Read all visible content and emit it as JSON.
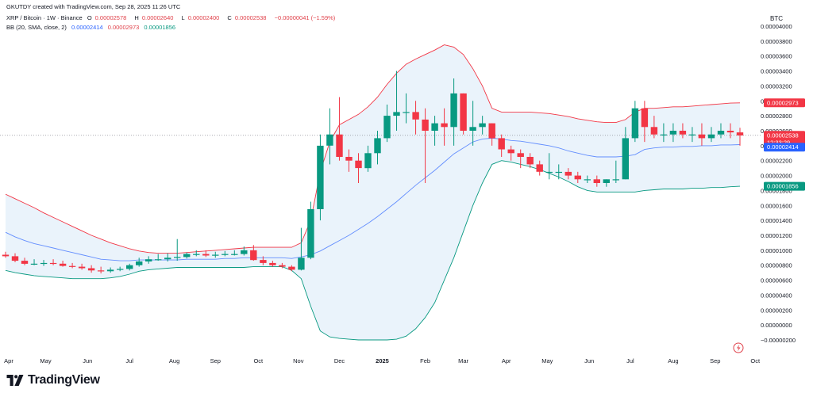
{
  "header": {
    "credit": "GKUTDY created with TradingView.com, Sep 28, 2025 11:26 UTC",
    "symbol": "XRP / Bitcoin · 1W · Binance",
    "ohlc": {
      "open_label": "O",
      "open": "0.00002578",
      "high_label": "H",
      "high": "0.00002640",
      "low_label": "L",
      "low": "0.00002400",
      "close_label": "C",
      "close": "0.00002538",
      "change": "−0.00000041 (−1.59%)"
    },
    "indicator": {
      "name": "BB (20, SMA, close, 2)",
      "basis": "0.00002414",
      "upper": "0.00002973",
      "lower": "0.00001856"
    }
  },
  "price_scale": {
    "currency": "BTC",
    "ticks": [
      "0.00004000",
      "0.00003800",
      "0.00003600",
      "0.00003400",
      "0.00003200",
      "0.00003000",
      "0.00002800",
      "0.00002600",
      "0.00002400",
      "0.00002200",
      "0.00002000",
      "0.00001800",
      "0.00001600",
      "0.00001400",
      "0.00001200",
      "0.00001000",
      "0.00000800",
      "0.00000600",
      "0.00000400",
      "0.00000200",
      "0.00000000",
      "−0.00000200"
    ]
  },
  "time_scale": {
    "labels": [
      "Apr",
      "May",
      "Jun",
      "Jul",
      "Aug",
      "Sep",
      "Oct",
      "Nov",
      "Dec",
      "2025",
      "Feb",
      "Mar",
      "Apr",
      "May",
      "Jun",
      "Jul",
      "Aug",
      "Sep",
      "Oct"
    ]
  },
  "price_tags": {
    "upper": "0.00002973",
    "last": "0.00002538",
    "countdown": "12:33:29",
    "basis": "0.00002414",
    "lower": "0.00001856"
  },
  "colors": {
    "up": "#089981",
    "down": "#f23645",
    "basis": "#2962ff",
    "upper": "#f23645",
    "lower": "#089981",
    "band_fill": "#e3effa"
  },
  "logo": {
    "text": "TradingView",
    "icon": "tradingview-logo-icon"
  },
  "chart_data": {
    "type": "candlestick",
    "x": [
      "2024-04-01",
      "2024-04-08",
      "2024-04-15",
      "2024-04-22",
      "2024-04-29",
      "2024-05-06",
      "2024-05-13",
      "2024-05-20",
      "2024-05-27",
      "2024-06-03",
      "2024-06-10",
      "2024-06-17",
      "2024-06-24",
      "2024-07-01",
      "2024-07-08",
      "2024-07-15",
      "2024-07-22",
      "2024-07-29",
      "2024-08-05",
      "2024-08-12",
      "2024-08-19",
      "2024-08-26",
      "2024-09-02",
      "2024-09-09",
      "2024-09-16",
      "2024-09-23",
      "2024-09-30",
      "2024-10-07",
      "2024-10-14",
      "2024-10-21",
      "2024-10-28",
      "2024-11-04",
      "2024-11-11",
      "2024-11-18",
      "2024-11-25",
      "2024-12-02",
      "2024-12-09",
      "2024-12-16",
      "2024-12-23",
      "2024-12-30",
      "2025-01-06",
      "2025-01-13",
      "2025-01-20",
      "2025-01-27",
      "2025-02-03",
      "2025-02-10",
      "2025-02-17",
      "2025-02-24",
      "2025-03-03",
      "2025-03-10",
      "2025-03-17",
      "2025-03-24",
      "2025-03-31",
      "2025-04-07",
      "2025-04-14",
      "2025-04-21",
      "2025-04-28",
      "2025-05-05",
      "2025-05-12",
      "2025-05-19",
      "2025-05-26",
      "2025-06-02",
      "2025-06-09",
      "2025-06-16",
      "2025-06-23",
      "2025-06-30",
      "2025-07-07",
      "2025-07-14",
      "2025-07-21",
      "2025-07-28",
      "2025-08-04",
      "2025-08-11",
      "2025-08-18",
      "2025-08-25",
      "2025-09-01",
      "2025-09-08",
      "2025-09-15",
      "2025-09-22"
    ],
    "open": [
      9.4e-06,
      9.2e-06,
      8.6e-06,
      8.2e-06,
      8.2e-06,
      8.3e-06,
      8.2e-06,
      7.9e-06,
      7.8e-06,
      7.6e-06,
      7.3e-06,
      7.2e-06,
      7.4e-06,
      7.5e-06,
      8e-06,
      8.5e-06,
      8.8e-06,
      8.8e-06,
      9e-06,
      9.1e-06,
      9.5e-06,
      9.5e-06,
      9.3e-06,
      9.4e-06,
      9.5e-06,
      9.5e-06,
      1e-05,
      8.7e-06,
      8.3e-06,
      8e-06,
      7.8e-06,
      7.4e-06,
      9e-06,
      1.55e-05,
      2.4e-05,
      2.55e-05,
      2.25e-05,
      2.2e-05,
      2.1e-05,
      2.3e-05,
      2.5e-05,
      2.8e-05,
      2.85e-05,
      2.85e-05,
      2.75e-05,
      2.6e-05,
      2.7e-05,
      2.65e-05,
      3.1e-05,
      2.6e-05,
      2.65e-05,
      2.7e-05,
      2.5e-05,
      2.35e-05,
      2.3e-05,
      2.25e-05,
      2.15e-05,
      2.05e-05,
      2.05e-05,
      2.05e-05,
      2e-05,
      1.95e-05,
      1.95e-05,
      1.9e-05,
      1.95e-05,
      1.95e-05,
      2.5e-05,
      2.9e-05,
      2.65e-05,
      2.55e-05,
      2.55e-05,
      2.6e-05,
      2.55e-05,
      2.55e-05,
      2.5e-05,
      2.55e-05,
      2.6e-05,
      2.578e-05
    ],
    "high": [
      9.8e-06,
      9.6e-06,
      9e-06,
      8.8e-06,
      8.7e-06,
      8.8e-06,
      8.6e-06,
      8.3e-06,
      8.2e-06,
      8e-06,
      7.8e-06,
      7.7e-06,
      7.8e-06,
      8.2e-06,
      9e-06,
      9.2e-06,
      9.5e-06,
      9.6e-06,
      1.15e-05,
      9.7e-06,
      1e-05,
      1e-05,
      9.8e-06,
      9.9e-06,
      1e-05,
      1.05e-05,
      1.07e-05,
      9.2e-06,
      8.6e-06,
      8.3e-06,
      8e-06,
      1.3e-05,
      1.65e-05,
      2.55e-05,
      2.9e-05,
      3.05e-05,
      2.35e-05,
      2.3e-05,
      2.4e-05,
      2.6e-05,
      2.95e-05,
      3.4e-05,
      3.1e-05,
      3e-05,
      2.9e-05,
      2.8e-05,
      2.9e-05,
      3.3e-05,
      3.1e-05,
      3e-05,
      2.8e-05,
      2.7e-05,
      2.55e-05,
      2.4e-05,
      2.35e-05,
      2.3e-05,
      2.2e-05,
      2.3e-05,
      2.15e-05,
      2.1e-05,
      2.05e-05,
      2e-05,
      2e-05,
      1.95e-05,
      2.2e-05,
      2.65e-05,
      3e-05,
      3e-05,
      2.8e-05,
      2.7e-05,
      2.7e-05,
      2.7e-05,
      2.65e-05,
      2.7e-05,
      2.65e-05,
      2.7e-05,
      2.7e-05,
      2.64e-05
    ],
    "low": [
      9e-06,
      8.4e-06,
      8e-06,
      8e-06,
      7.9e-06,
      8e-06,
      7.8e-06,
      7.6e-06,
      7.4e-06,
      7e-06,
      6.9e-06,
      7e-06,
      7.2e-06,
      7.3e-06,
      7.8e-06,
      8.2e-06,
      8.6e-06,
      8.5e-06,
      8.6e-06,
      8.9e-06,
      9.2e-06,
      9.1e-06,
      9e-06,
      9.2e-06,
      9.3e-06,
      9.3e-06,
      8.6e-06,
      8e-06,
      7.8e-06,
      7.6e-06,
      7.2e-06,
      7.3e-06,
      8.8e-06,
      1.4e-05,
      2.15e-05,
      2.2e-05,
      2.05e-05,
      1.9e-05,
      2.05e-05,
      2.15e-05,
      2.45e-05,
      2.6e-05,
      2.7e-05,
      2.55e-05,
      1.9e-05,
      2.4e-05,
      2.4e-05,
      2.4e-05,
      2.55e-05,
      2.4e-05,
      2.55e-05,
      2.4e-05,
      2.25e-05,
      2.2e-05,
      2.1e-05,
      2.1e-05,
      2e-05,
      1.95e-05,
      1.95e-05,
      1.95e-05,
      1.9e-05,
      1.9e-05,
      1.85e-05,
      1.85e-05,
      1.9e-05,
      1.95e-05,
      2.45e-05,
      2.45e-05,
      2.5e-05,
      2.45e-05,
      2.45e-05,
      2.5e-05,
      2.45e-05,
      2.4e-05,
      2.45e-05,
      2.5e-05,
      2.5e-05,
      2.4e-05
    ],
    "close": [
      9.2e-06,
      8.6e-06,
      8.2e-06,
      8.2e-06,
      8.3e-06,
      8.2e-06,
      7.9e-06,
      7.8e-06,
      7.6e-06,
      7.3e-06,
      7.2e-06,
      7.4e-06,
      7.5e-06,
      8e-06,
      8.5e-06,
      8.8e-06,
      8.8e-06,
      9e-06,
      9.1e-06,
      9.5e-06,
      9.5e-06,
      9.3e-06,
      9.4e-06,
      9.5e-06,
      9.5e-06,
      1e-05,
      8.7e-06,
      8.3e-06,
      8e-06,
      7.8e-06,
      7.4e-06,
      9e-06,
      1.55e-05,
      2.4e-05,
      2.55e-05,
      2.25e-05,
      2.2e-05,
      2.1e-05,
      2.3e-05,
      2.5e-05,
      2.8e-05,
      2.85e-05,
      2.85e-05,
      2.75e-05,
      2.6e-05,
      2.7e-05,
      2.65e-05,
      3.1e-05,
      2.6e-05,
      2.65e-05,
      2.7e-05,
      2.5e-05,
      2.35e-05,
      2.3e-05,
      2.25e-05,
      2.15e-05,
      2.05e-05,
      2.05e-05,
      2.05e-05,
      2e-05,
      1.95e-05,
      1.95e-05,
      1.9e-05,
      1.95e-05,
      1.95e-05,
      2.5e-05,
      2.9e-05,
      2.65e-05,
      2.55e-05,
      2.55e-05,
      2.6e-05,
      2.55e-05,
      2.55e-05,
      2.5e-05,
      2.55e-05,
      2.6e-05,
      2.578e-05,
      2.538e-05
    ],
    "bollinger": {
      "period": 20,
      "stddev": 2,
      "ma": "SMA",
      "source": "close",
      "basis": [
        1.24e-05,
        1.18e-05,
        1.13e-05,
        1.09e-05,
        1.06e-05,
        1.03e-05,
        1e-05,
        9.7e-06,
        9.4e-06,
        9.1e-06,
        8.8e-06,
        8.7e-06,
        8.6e-06,
        8.6e-06,
        8.7e-06,
        8.7e-06,
        8.7e-06,
        8.7e-06,
        8.7e-06,
        8.8e-06,
        8.8e-06,
        8.8e-06,
        8.8e-06,
        8.9e-06,
        8.9e-06,
        9e-06,
        9e-06,
        9e-06,
        9e-06,
        9e-06,
        8.9e-06,
        9.1e-06,
        9.4e-06,
        9.9e-06,
        1.06e-05,
        1.13e-05,
        1.2e-05,
        1.28e-05,
        1.36e-05,
        1.45e-05,
        1.55e-05,
        1.65e-05,
        1.76e-05,
        1.87e-05,
        1.97e-05,
        2.07e-05,
        2.18e-05,
        2.29e-05,
        2.37e-05,
        2.45e-05,
        2.49e-05,
        2.5e-05,
        2.49e-05,
        2.47e-05,
        2.46e-05,
        2.44e-05,
        2.42e-05,
        2.4e-05,
        2.37e-05,
        2.33e-05,
        2.3e-05,
        2.27e-05,
        2.25e-05,
        2.25e-05,
        2.25e-05,
        2.26e-05,
        2.28e-05,
        2.35e-05,
        2.37e-05,
        2.38e-05,
        2.38e-05,
        2.39e-05,
        2.39e-05,
        2.4e-05,
        2.4e-05,
        2.41e-05,
        2.41e-05,
        2.414e-05
      ],
      "upper": [
        1.75e-05,
        1.69e-05,
        1.63e-05,
        1.57e-05,
        1.5e-05,
        1.44e-05,
        1.38e-05,
        1.32e-05,
        1.26e-05,
        1.2e-05,
        1.15e-05,
        1.1e-05,
        1.06e-05,
        1.02e-05,
        9.9e-06,
        9.7e-06,
        9.6e-06,
        9.6e-06,
        9.6e-06,
        9.7e-06,
        9.8e-06,
        9.9e-06,
        1e-05,
        1.01e-05,
        1.02e-05,
        1.03e-05,
        1.04e-05,
        1.04e-05,
        1.04e-05,
        1.04e-05,
        1.04e-05,
        1.1e-05,
        1.4e-05,
        2.05e-05,
        2.45e-05,
        2.68e-05,
        2.75e-05,
        2.82e-05,
        2.92e-05,
        3.05e-05,
        3.22e-05,
        3.37e-05,
        3.49e-05,
        3.56e-05,
        3.62e-05,
        3.68e-05,
        3.75e-05,
        3.72e-05,
        3.62e-05,
        3.43e-05,
        3.2e-05,
        2.9e-05,
        2.85e-05,
        2.85e-05,
        2.85e-05,
        2.85e-05,
        2.84e-05,
        2.83e-05,
        2.81e-05,
        2.79e-05,
        2.76e-05,
        2.74e-05,
        2.72e-05,
        2.71e-05,
        2.71e-05,
        2.75e-05,
        2.85e-05,
        2.9e-05,
        2.9e-05,
        2.91e-05,
        2.92e-05,
        2.92e-05,
        2.93e-05,
        2.94e-05,
        2.95e-05,
        2.96e-05,
        2.97e-05,
        2.973e-05
      ],
      "lower": [
        7.3e-06,
        7e-06,
        6.8e-06,
        6.6e-06,
        6.5e-06,
        6.4e-06,
        6.3e-06,
        6.2e-06,
        6.2e-06,
        6.2e-06,
        6.2e-06,
        6.3e-06,
        6.5e-06,
        6.8e-06,
        7.2e-06,
        7.4e-06,
        7.5e-06,
        7.6e-06,
        7.7e-06,
        7.7e-06,
        7.7e-06,
        7.7e-06,
        7.7e-06,
        7.7e-06,
        7.7e-06,
        7.7e-06,
        7.8e-06,
        7.8e-06,
        7.8e-06,
        7.8e-06,
        7.3e-06,
        6.2e-06,
        2.5e-06,
        -8e-07,
        -1.6e-06,
        -1.8e-06,
        -1.9e-06,
        -2e-06,
        -2e-06,
        -2e-06,
        -2e-06,
        -1.9e-06,
        -1.5e-06,
        -5e-07,
        1e-06,
        3e-06,
        6e-06,
        9e-06,
        1.25e-05,
        1.6e-05,
        1.9e-05,
        2.15e-05,
        2.2e-05,
        2.18e-05,
        2.15e-05,
        2.12e-05,
        2.08e-05,
        2.03e-05,
        1.98e-05,
        1.92e-05,
        1.85e-05,
        1.8e-05,
        1.78e-05,
        1.78e-05,
        1.78e-05,
        1.78e-05,
        1.78e-05,
        1.8e-05,
        1.81e-05,
        1.82e-05,
        1.82e-05,
        1.82e-05,
        1.83e-05,
        1.83e-05,
        1.84e-05,
        1.84e-05,
        1.85e-05,
        1.856e-05
      ]
    },
    "ylim": [
      -3e-06,
      4e-05
    ],
    "grid": false,
    "title": "XRP / Bitcoin · 1W · Binance",
    "xlabel": "",
    "ylabel": ""
  }
}
